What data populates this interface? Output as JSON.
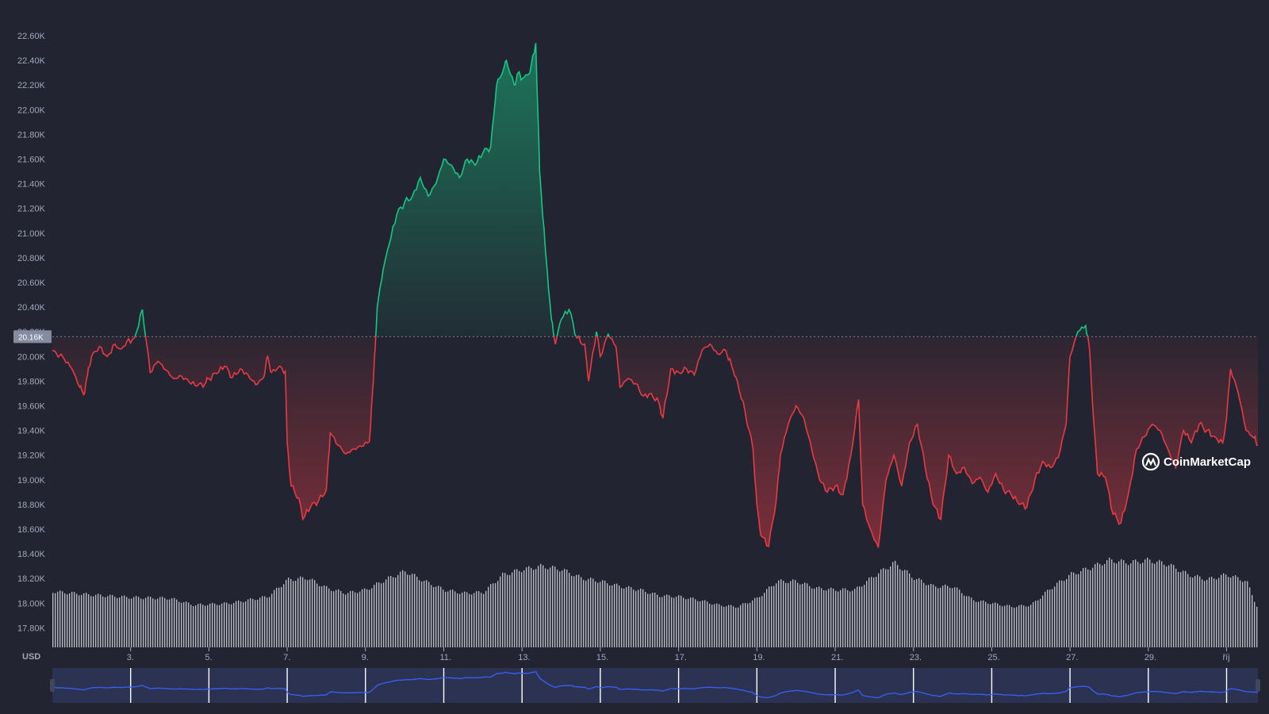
{
  "chart_data": {
    "type": "area",
    "currency": "USD",
    "ylim": [
      17600,
      22700
    ],
    "y_ticks": [
      "22.60K",
      "22.40K",
      "22.20K",
      "22.00K",
      "21.80K",
      "21.60K",
      "21.40K",
      "21.20K",
      "21.00K",
      "20.80K",
      "20.60K",
      "20.40K",
      "20.20K",
      "20.00K",
      "19.80K",
      "19.60K",
      "19.40K",
      "19.20K",
      "19.00K",
      "18.80K",
      "18.60K",
      "18.40K",
      "18.20K",
      "18.00K",
      "17.80K"
    ],
    "y_tick_values": [
      22600,
      22400,
      22200,
      22000,
      21800,
      21600,
      21400,
      21200,
      21000,
      20800,
      20600,
      20400,
      20200,
      20000,
      19800,
      19600,
      19400,
      19200,
      19000,
      18800,
      18600,
      18400,
      18200,
      18000,
      17800
    ],
    "x_ticks": [
      "3.",
      "5.",
      "7.",
      "9.",
      "11.",
      "13.",
      "15.",
      "17.",
      "19.",
      "21.",
      "23.",
      "25.",
      "27.",
      "29.",
      "říj"
    ],
    "x_tick_days": [
      3,
      5,
      7,
      9,
      11,
      13,
      15,
      17,
      19,
      21,
      23,
      25,
      27,
      29,
      31
    ],
    "xlim_days": [
      1,
      31.8
    ],
    "reference_price": 20160,
    "reference_label": "20.16K",
    "up_color": "#16c784",
    "down_color": "#ea3943",
    "price_points": [
      [
        1.0,
        20050
      ],
      [
        1.3,
        19980
      ],
      [
        1.5,
        19900
      ],
      [
        1.7,
        19750
      ],
      [
        1.8,
        19690
      ],
      [
        1.9,
        19850
      ],
      [
        2.0,
        20000
      ],
      [
        2.2,
        20080
      ],
      [
        2.4,
        20000
      ],
      [
        2.6,
        20100
      ],
      [
        2.75,
        20060
      ],
      [
        2.9,
        20120
      ],
      [
        3.1,
        20150
      ],
      [
        3.3,
        20380
      ],
      [
        3.5,
        19870
      ],
      [
        3.7,
        19960
      ],
      [
        3.9,
        19890
      ],
      [
        4.1,
        19820
      ],
      [
        4.3,
        19840
      ],
      [
        4.5,
        19790
      ],
      [
        4.7,
        19760
      ],
      [
        4.9,
        19780
      ],
      [
        5.0,
        19820
      ],
      [
        5.2,
        19860
      ],
      [
        5.4,
        19920
      ],
      [
        5.6,
        19830
      ],
      [
        5.8,
        19900
      ],
      [
        6.0,
        19850
      ],
      [
        6.2,
        19770
      ],
      [
        6.4,
        19830
      ],
      [
        6.5,
        20000
      ],
      [
        6.6,
        19870
      ],
      [
        6.8,
        19920
      ],
      [
        6.95,
        19880
      ],
      [
        7.0,
        19300
      ],
      [
        7.1,
        18950
      ],
      [
        7.3,
        18850
      ],
      [
        7.4,
        18680
      ],
      [
        7.6,
        18780
      ],
      [
        7.8,
        18830
      ],
      [
        8.0,
        18920
      ],
      [
        8.1,
        19380
      ],
      [
        8.3,
        19280
      ],
      [
        8.5,
        19210
      ],
      [
        8.7,
        19250
      ],
      [
        8.9,
        19270
      ],
      [
        9.1,
        19310
      ],
      [
        9.2,
        19800
      ],
      [
        9.3,
        20400
      ],
      [
        9.45,
        20700
      ],
      [
        9.6,
        20900
      ],
      [
        9.8,
        21150
      ],
      [
        10.0,
        21250
      ],
      [
        10.2,
        21300
      ],
      [
        10.4,
        21450
      ],
      [
        10.6,
        21300
      ],
      [
        10.8,
        21400
      ],
      [
        11.0,
        21600
      ],
      [
        11.2,
        21550
      ],
      [
        11.4,
        21450
      ],
      [
        11.6,
        21600
      ],
      [
        11.8,
        21550
      ],
      [
        12.0,
        21650
      ],
      [
        12.2,
        21700
      ],
      [
        12.35,
        22200
      ],
      [
        12.5,
        22300
      ],
      [
        12.6,
        22400
      ],
      [
        12.8,
        22200
      ],
      [
        12.9,
        22300
      ],
      [
        13.0,
        22250
      ],
      [
        13.2,
        22300
      ],
      [
        13.35,
        22540
      ],
      [
        13.45,
        21500
      ],
      [
        13.6,
        20850
      ],
      [
        13.75,
        20300
      ],
      [
        13.85,
        20100
      ],
      [
        14.0,
        20300
      ],
      [
        14.2,
        20380
      ],
      [
        14.4,
        20150
      ],
      [
        14.6,
        20100
      ],
      [
        14.7,
        19800
      ],
      [
        14.9,
        20200
      ],
      [
        15.0,
        20000
      ],
      [
        15.2,
        20180
      ],
      [
        15.4,
        20080
      ],
      [
        15.5,
        19750
      ],
      [
        15.7,
        19820
      ],
      [
        15.9,
        19780
      ],
      [
        16.1,
        19680
      ],
      [
        16.3,
        19700
      ],
      [
        16.5,
        19620
      ],
      [
        16.6,
        19500
      ],
      [
        16.8,
        19900
      ],
      [
        17.0,
        19870
      ],
      [
        17.2,
        19900
      ],
      [
        17.4,
        19850
      ],
      [
        17.6,
        20050
      ],
      [
        17.8,
        20100
      ],
      [
        18.0,
        20020
      ],
      [
        18.2,
        20050
      ],
      [
        18.35,
        19930
      ],
      [
        18.5,
        19800
      ],
      [
        18.7,
        19550
      ],
      [
        18.9,
        19250
      ],
      [
        19.0,
        18800
      ],
      [
        19.1,
        18550
      ],
      [
        19.3,
        18460
      ],
      [
        19.5,
        18850
      ],
      [
        19.6,
        19200
      ],
      [
        19.8,
        19450
      ],
      [
        20.0,
        19600
      ],
      [
        20.2,
        19500
      ],
      [
        20.4,
        19250
      ],
      [
        20.6,
        19000
      ],
      [
        20.8,
        18900
      ],
      [
        21.0,
        18950
      ],
      [
        21.2,
        18880
      ],
      [
        21.4,
        19200
      ],
      [
        21.6,
        19650
      ],
      [
        21.7,
        18800
      ],
      [
        21.9,
        18600
      ],
      [
        22.1,
        18450
      ],
      [
        22.3,
        19000
      ],
      [
        22.5,
        19200
      ],
      [
        22.7,
        18950
      ],
      [
        22.9,
        19300
      ],
      [
        23.1,
        19450
      ],
      [
        23.3,
        19100
      ],
      [
        23.5,
        18800
      ],
      [
        23.7,
        18680
      ],
      [
        23.9,
        19200
      ],
      [
        24.1,
        19050
      ],
      [
        24.3,
        19100
      ],
      [
        24.5,
        18970
      ],
      [
        24.7,
        19020
      ],
      [
        24.9,
        18900
      ],
      [
        25.1,
        19050
      ],
      [
        25.3,
        18920
      ],
      [
        25.5,
        18880
      ],
      [
        25.7,
        18800
      ],
      [
        25.9,
        18780
      ],
      [
        26.1,
        19000
      ],
      [
        26.3,
        19150
      ],
      [
        26.5,
        19100
      ],
      [
        26.7,
        19180
      ],
      [
        26.9,
        19450
      ],
      [
        27.0,
        20000
      ],
      [
        27.2,
        20200
      ],
      [
        27.4,
        20250
      ],
      [
        27.5,
        20050
      ],
      [
        27.6,
        19500
      ],
      [
        27.7,
        19050
      ],
      [
        27.9,
        19020
      ],
      [
        28.1,
        18720
      ],
      [
        28.3,
        18650
      ],
      [
        28.5,
        18900
      ],
      [
        28.7,
        19250
      ],
      [
        28.9,
        19350
      ],
      [
        29.1,
        19450
      ],
      [
        29.3,
        19400
      ],
      [
        29.5,
        19250
      ],
      [
        29.7,
        19100
      ],
      [
        29.9,
        19400
      ],
      [
        30.1,
        19300
      ],
      [
        30.3,
        19450
      ],
      [
        30.5,
        19400
      ],
      [
        30.7,
        19350
      ],
      [
        30.9,
        19300
      ],
      [
        31.0,
        19500
      ],
      [
        31.1,
        19900
      ],
      [
        31.3,
        19700
      ],
      [
        31.5,
        19400
      ],
      [
        31.7,
        19340
      ],
      [
        31.8,
        19280
      ]
    ],
    "volume_profile": [
      [
        1.0,
        0.66
      ],
      [
        2.0,
        0.62
      ],
      [
        3.0,
        0.59
      ],
      [
        4.0,
        0.58
      ],
      [
        4.6,
        0.5
      ],
      [
        5.5,
        0.52
      ],
      [
        6.5,
        0.6
      ],
      [
        7.0,
        0.8
      ],
      [
        7.5,
        0.82
      ],
      [
        8.0,
        0.7
      ],
      [
        8.5,
        0.64
      ],
      [
        9.0,
        0.68
      ],
      [
        9.5,
        0.8
      ],
      [
        10.0,
        0.9
      ],
      [
        10.5,
        0.78
      ],
      [
        11.0,
        0.68
      ],
      [
        11.5,
        0.64
      ],
      [
        12.0,
        0.65
      ],
      [
        12.5,
        0.86
      ],
      [
        13.0,
        0.92
      ],
      [
        13.5,
        0.96
      ],
      [
        14.0,
        0.92
      ],
      [
        14.5,
        0.82
      ],
      [
        15.0,
        0.78
      ],
      [
        15.5,
        0.72
      ],
      [
        16.0,
        0.68
      ],
      [
        16.5,
        0.61
      ],
      [
        17.0,
        0.6
      ],
      [
        17.5,
        0.56
      ],
      [
        18.0,
        0.5
      ],
      [
        18.5,
        0.48
      ],
      [
        19.0,
        0.58
      ],
      [
        19.5,
        0.78
      ],
      [
        20.0,
        0.78
      ],
      [
        20.5,
        0.7
      ],
      [
        21.0,
        0.68
      ],
      [
        21.5,
        0.68
      ],
      [
        22.0,
        0.85
      ],
      [
        22.5,
        1.0
      ],
      [
        23.0,
        0.82
      ],
      [
        23.5,
        0.72
      ],
      [
        24.0,
        0.72
      ],
      [
        24.5,
        0.56
      ],
      [
        25.0,
        0.52
      ],
      [
        25.5,
        0.48
      ],
      [
        26.0,
        0.5
      ],
      [
        26.5,
        0.7
      ],
      [
        27.0,
        0.86
      ],
      [
        27.5,
        0.94
      ],
      [
        28.0,
        1.03
      ],
      [
        28.5,
        1.0
      ],
      [
        29.0,
        1.03
      ],
      [
        29.5,
        0.98
      ],
      [
        30.0,
        0.86
      ],
      [
        30.5,
        0.8
      ],
      [
        31.0,
        0.86
      ],
      [
        31.5,
        0.78
      ],
      [
        31.8,
        0.44
      ]
    ]
  },
  "brand": {
    "name": "CoinMarketCap"
  }
}
